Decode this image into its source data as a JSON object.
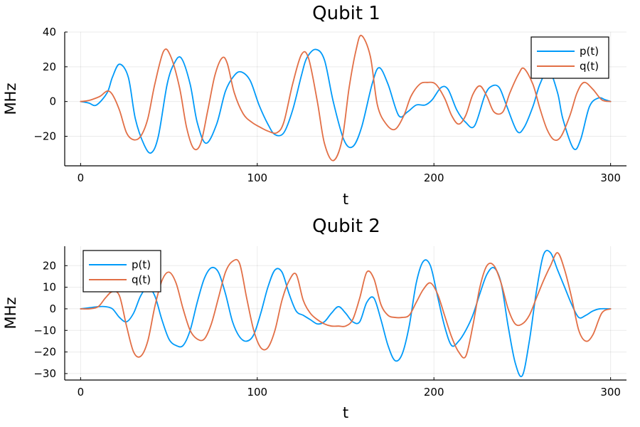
{
  "chart_data": [
    {
      "type": "line",
      "title": "Qubit 1",
      "xlabel": "t",
      "ylabel": "MHz",
      "xlim": [
        -9,
        309
      ],
      "ylim": [
        -37,
        40
      ],
      "xticks": [
        0,
        100,
        200,
        300
      ],
      "yticks": [
        -20,
        0,
        20,
        40
      ],
      "grid": true,
      "legend_position": "top-right",
      "series": [
        {
          "name": "p(t)",
          "color": "#009af9",
          "x": [
            0,
            3,
            5,
            9,
            15,
            18,
            22,
            27,
            31,
            36,
            40,
            44,
            49,
            53,
            57,
            62,
            66,
            71,
            77,
            82,
            87,
            91,
            96,
            101,
            106,
            110,
            115,
            120,
            125,
            128,
            133,
            138,
            143,
            149,
            154,
            159,
            165,
            169,
            174,
            180,
            185,
            190,
            195,
            199,
            204,
            208,
            213,
            218,
            223,
            229,
            233,
            237,
            241,
            247,
            251,
            256,
            260,
            265,
            270,
            273,
            279,
            283,
            288,
            293,
            297,
            300
          ],
          "y": [
            0,
            -0.5,
            -1,
            -2,
            5,
            14,
            21.5,
            14,
            -10,
            -25,
            -29.5,
            -20,
            10,
            22,
            25,
            10,
            -12,
            -24,
            -13,
            6,
            15,
            17,
            12,
            -2,
            -13,
            -19,
            -18,
            -5,
            15,
            25,
            30,
            24,
            0,
            -22,
            -26,
            -15,
            10,
            19.5,
            10,
            -8,
            -6,
            -2,
            -2,
            1,
            8,
            7,
            -5,
            -12,
            -14,
            4,
            9,
            8,
            -2,
            -17,
            -15,
            -3,
            10,
            18,
            5,
            -10,
            -27,
            -22,
            -3,
            2,
            1,
            0
          ]
        },
        {
          "name": "q(t)",
          "color": "#e26f46",
          "x": [
            0,
            3,
            6,
            11,
            15,
            18,
            22,
            26,
            30,
            34,
            38,
            42,
            47,
            51,
            56,
            60,
            64,
            68,
            72,
            76,
            80,
            83,
            87,
            92,
            97,
            102,
            106,
            111,
            115,
            120,
            125,
            129,
            134,
            138,
            143,
            148,
            152,
            156,
            159,
            164,
            168,
            173,
            178,
            183,
            187,
            192,
            196,
            201,
            206,
            210,
            214,
            218,
            222,
            226,
            230,
            234,
            239,
            243,
            248,
            251,
            256,
            260,
            264,
            268,
            272,
            277,
            281,
            285,
            290,
            295,
            300
          ],
          "y": [
            0,
            0.3,
            1,
            3,
            6,
            4,
            -5,
            -18,
            -22,
            -20,
            -10,
            10,
            29,
            26,
            8,
            -15,
            -27,
            -24,
            -5,
            15,
            25,
            22,
            5,
            -7,
            -12,
            -15,
            -17,
            -18,
            -12,
            10,
            27,
            25,
            0,
            -24,
            -34,
            -22,
            8,
            30,
            38,
            26,
            -2,
            -13,
            -16,
            -8,
            3,
            10,
            11,
            10,
            2,
            -8,
            -13,
            -8,
            4,
            9,
            3,
            -6,
            -6,
            5,
            16,
            19,
            10,
            -4,
            -16,
            -22,
            -20,
            -8,
            5,
            11,
            7,
            1,
            0
          ]
        }
      ]
    },
    {
      "type": "line",
      "title": "Qubit 2",
      "xlabel": "t",
      "ylabel": "MHz",
      "xlim": [
        -9,
        309
      ],
      "ylim": [
        -33,
        29
      ],
      "xticks": [
        0,
        100,
        200,
        300
      ],
      "yticks": [
        -30,
        -20,
        -10,
        0,
        10,
        20
      ],
      "grid": true,
      "legend_position": "top-left",
      "series": [
        {
          "name": "p(t)",
          "color": "#009af9",
          "x": [
            0,
            5,
            10,
            14,
            18,
            22,
            26,
            30,
            34,
            38,
            42,
            46,
            50,
            54,
            58,
            62,
            66,
            70,
            74,
            78,
            82,
            86,
            90,
            94,
            98,
            102,
            106,
            110,
            114,
            118,
            122,
            126,
            130,
            134,
            138,
            142,
            146,
            150,
            154,
            158,
            162,
            166,
            170,
            174,
            178,
            182,
            186,
            190,
            194,
            198,
            202,
            206,
            210,
            214,
            218,
            222,
            226,
            230,
            234,
            238,
            242,
            246,
            250,
            254,
            258,
            262,
            266,
            270,
            274,
            278,
            282,
            286,
            290,
            294,
            300
          ],
          "y": [
            0,
            0.5,
            1,
            1,
            0,
            -4,
            -6,
            -2,
            6,
            10,
            6,
            -5,
            -14,
            -17,
            -17,
            -10,
            3,
            14,
            19,
            17,
            7,
            -6,
            -13,
            -15,
            -12,
            -2,
            10,
            18,
            17,
            7,
            -1,
            -3,
            -5,
            -7,
            -6,
            -2,
            1,
            -2,
            -6,
            -6,
            3,
            5,
            -5,
            -17,
            -24,
            -21,
            -8,
            12,
            22,
            20,
            6,
            -8,
            -17,
            -15,
            -10,
            -3,
            7,
            16,
            19,
            12,
            -8,
            -25,
            -31,
            -15,
            8,
            25,
            26,
            18,
            10,
            2,
            -4,
            -3,
            -1,
            0,
            0
          ]
        },
        {
          "name": "q(t)",
          "color": "#e26f46",
          "x": [
            0,
            5,
            10,
            14,
            18,
            22,
            26,
            30,
            34,
            38,
            42,
            46,
            50,
            54,
            58,
            62,
            66,
            70,
            74,
            78,
            82,
            86,
            90,
            94,
            98,
            102,
            106,
            110,
            114,
            118,
            122,
            126,
            130,
            134,
            138,
            142,
            146,
            150,
            154,
            158,
            162,
            166,
            170,
            174,
            178,
            182,
            186,
            190,
            194,
            198,
            202,
            206,
            210,
            214,
            218,
            222,
            226,
            230,
            234,
            238,
            242,
            246,
            250,
            254,
            258,
            262,
            266,
            270,
            274,
            278,
            282,
            286,
            290,
            295,
            300
          ],
          "y": [
            0,
            0,
            1,
            5,
            8,
            6,
            -8,
            -20,
            -22,
            -15,
            1,
            13,
            17,
            12,
            0,
            -10,
            -14,
            -14,
            -7,
            5,
            17,
            22,
            21,
            5,
            -10,
            -18,
            -18,
            -10,
            4,
            13,
            16,
            4,
            -2,
            -5,
            -7,
            -8,
            -8,
            -8,
            -5,
            5,
            17,
            14,
            2,
            -3,
            -4,
            -4,
            -3,
            3,
            9,
            12,
            7,
            -3,
            -13,
            -20,
            -22,
            -8,
            10,
            20,
            20,
            12,
            0,
            -7,
            -7,
            -3,
            5,
            13,
            20,
            26,
            18,
            5,
            -10,
            -15,
            -12,
            -2,
            0
          ]
        }
      ]
    }
  ]
}
